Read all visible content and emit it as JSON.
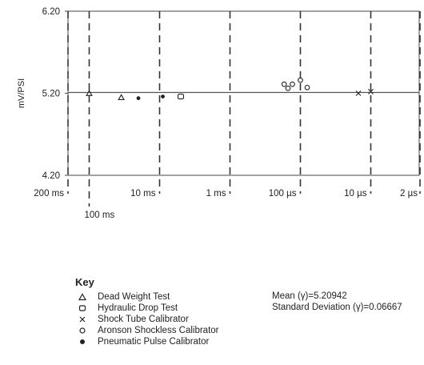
{
  "chart_data": {
    "type": "scatter",
    "ylabel": "mV/PSI",
    "ylim": [
      4.2,
      6.2
    ],
    "yticks": [
      "6.20",
      "5.20",
      "4.20"
    ],
    "mean_line": 5.20942,
    "xticks": [
      "200 ms",
      "100 ms",
      "10 ms",
      "1 ms",
      "100 µs",
      "10 µs",
      "2 µs"
    ],
    "dashed_x_ticks": [
      "200 ms",
      "100 ms",
      "10 ms",
      "1 ms",
      "100 µs",
      "10 µs",
      "2 µs"
    ],
    "series": [
      {
        "name": "Dead Weight Test",
        "marker": "triangle",
        "points": [
          {
            "x": "100 ms",
            "y": 5.2
          },
          {
            "x": "35 ms",
            "y": 5.15
          }
        ]
      },
      {
        "name": "Hydraulic Drop Test",
        "marker": "square",
        "points": [
          {
            "x": "5 ms",
            "y": 5.16
          }
        ]
      },
      {
        "name": "Shock Tube Calibrator",
        "marker": "x",
        "points": [
          {
            "x": "15 µs",
            "y": 5.2
          },
          {
            "x": "10 µs",
            "y": 5.22
          }
        ]
      },
      {
        "name": "Aronson Shockless Calibrator",
        "marker": "circle",
        "points": [
          {
            "x": "170 µs",
            "y": 5.31
          },
          {
            "x": "150 µs",
            "y": 5.26
          },
          {
            "x": "130 µs",
            "y": 5.31
          },
          {
            "x": "100 µs",
            "y": 5.36
          },
          {
            "x": "80 µs",
            "y": 5.27
          }
        ]
      },
      {
        "name": "Pneumatic Pulse Calibrator",
        "marker": "dot",
        "points": [
          {
            "x": "20 ms",
            "y": 5.14
          },
          {
            "x": "9 ms",
            "y": 5.16
          }
        ]
      }
    ]
  },
  "key": {
    "title": "Key",
    "items": [
      {
        "symbol": "triangle",
        "label": "Dead Weight Test"
      },
      {
        "symbol": "square",
        "label": "Hydraulic Drop Test"
      },
      {
        "symbol": "x",
        "label": "Shock Tube Calibrator"
      },
      {
        "symbol": "circle",
        "label": "Aronson Shockless Calibrator"
      },
      {
        "symbol": "dot",
        "label": "Pneumatic Pulse Calibrator"
      }
    ]
  },
  "stats": {
    "mean": "Mean (γ)=5.20942",
    "std": "Standard Deviation (γ)=0.06667"
  }
}
